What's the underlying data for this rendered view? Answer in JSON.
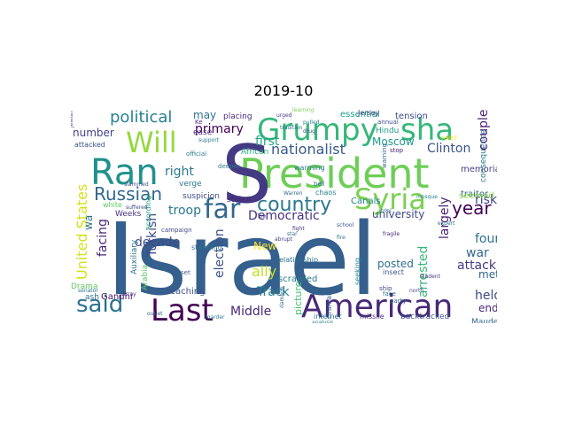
{
  "figure": {
    "title": "2019-10"
  },
  "palette": {
    "dark_purple": "#440154",
    "indigo": "#472d7b",
    "blue": "#3b528b",
    "steel": "#2c728e",
    "teal": "#21918c",
    "green_teal": "#28ae80",
    "green": "#5ec962",
    "light_green": "#addc30",
    "yellow": "#fde725"
  },
  "words": [
    {
      "text": "Israel",
      "color": "#355f8d"
    },
    {
      "text": "President",
      "color": "#6ece58"
    },
    {
      "text": "S",
      "color": "#443983"
    },
    {
      "text": "Grumpy",
      "color": "#35b779"
    },
    {
      "text": "sha",
      "color": "#35b779"
    },
    {
      "text": "American",
      "color": "#482878"
    },
    {
      "text": "Ran",
      "color": "#21918c"
    },
    {
      "text": "Last",
      "color": "#440154"
    },
    {
      "text": "Syria",
      "color": "#7ad151"
    },
    {
      "text": "Will",
      "color": "#95d840"
    },
    {
      "text": "far",
      "color": "#31688e"
    },
    {
      "text": "said",
      "color": "#2c728e"
    },
    {
      "text": "country",
      "color": "#2a788e"
    },
    {
      "text": "Russian",
      "color": "#31688e"
    },
    {
      "text": "political",
      "color": "#26828e"
    },
    {
      "text": "year",
      "color": "#440154"
    },
    {
      "text": "United States",
      "color": "#d2e21b"
    },
    {
      "text": "nationalist",
      "color": "#38598c"
    },
    {
      "text": "Democratic",
      "color": "#46337f"
    },
    {
      "text": "troop",
      "color": "#2a788e"
    },
    {
      "text": "right",
      "color": "#2a788e"
    },
    {
      "text": "primary",
      "color": "#440154"
    },
    {
      "text": "may",
      "color": "#2c728e"
    },
    {
      "text": "number",
      "color": "#424086"
    },
    {
      "text": "decade",
      "color": "#3e4a89"
    },
    {
      "text": "Turkish",
      "color": "#3e4a89"
    },
    {
      "text": "election",
      "color": "#3b528b"
    },
    {
      "text": "facing",
      "color": "#482475"
    },
    {
      "text": "wa",
      "color": "#2c728e"
    },
    {
      "text": "first",
      "color": "#21a685"
    },
    {
      "text": "ally",
      "color": "#bddf26"
    },
    {
      "text": "Track",
      "color": "#26828e"
    },
    {
      "text": "Middle",
      "color": "#482878"
    },
    {
      "text": "Moscow",
      "color": "#1f988b"
    },
    {
      "text": "Clinton",
      "color": "#3b528b"
    },
    {
      "text": "couple",
      "color": "#481f70"
    },
    {
      "text": "risk",
      "color": "#414487"
    },
    {
      "text": "found",
      "color": "#2c728e"
    },
    {
      "text": "war",
      "color": "#31688e"
    },
    {
      "text": "attack",
      "color": "#443983"
    },
    {
      "text": "held",
      "color": "#3e4a89"
    },
    {
      "text": "end",
      "color": "#482878"
    },
    {
      "text": "met",
      "color": "#31688e"
    },
    {
      "text": "largely",
      "color": "#481f70"
    },
    {
      "text": "arrested",
      "color": "#35b779"
    },
    {
      "text": "posted",
      "color": "#2d708e"
    },
    {
      "text": "New",
      "color": "#fde725"
    },
    {
      "text": "picture",
      "color": "#44bf70"
    },
    {
      "text": "university",
      "color": "#3e4a89"
    },
    {
      "text": "Canals",
      "color": "#26828e"
    },
    {
      "text": "scrawled",
      "color": "#287c8e"
    },
    {
      "text": "relationship",
      "color": "#2c728e"
    },
    {
      "text": "seeking",
      "color": "#26828e"
    },
    {
      "text": "traitor",
      "color": "#31688e"
    },
    {
      "text": "seemed",
      "color": "#8fd744"
    },
    {
      "text": "tension",
      "color": "#3e4a89"
    },
    {
      "text": "Hindu",
      "color": "#1fa088"
    },
    {
      "text": "memorial",
      "color": "#433e85"
    },
    {
      "text": "consequence",
      "color": "#2a788e"
    },
    {
      "text": "essential",
      "color": "#1fa088"
    },
    {
      "text": "placing",
      "color": "#472c7a"
    },
    {
      "text": "African",
      "color": "#2ab07f"
    },
    {
      "text": "warming",
      "color": "#2a788e"
    },
    {
      "text": "suspicion",
      "color": "#3e4a89"
    },
    {
      "text": "verge",
      "color": "#2a788e"
    },
    {
      "text": "stolen",
      "color": "#482475"
    },
    {
      "text": "reaching",
      "color": "#3b528b"
    },
    {
      "text": "Gandhi",
      "color": "#471365"
    },
    {
      "text": "Drama",
      "color": "#5ec962"
    },
    {
      "text": "ash",
      "color": "#2c728e"
    },
    {
      "text": "Weeks",
      "color": "#46337f"
    },
    {
      "text": "Auxiliary",
      "color": "#2a788e"
    },
    {
      "text": "Arabia",
      "color": "#5ec962"
    },
    {
      "text": "according",
      "color": "#20a486"
    },
    {
      "text": "campaign",
      "color": "#3e4a89"
    },
    {
      "text": "standing",
      "color": "#2c728e"
    },
    {
      "text": "Maude",
      "color": "#31688e"
    },
    {
      "text": "backtracked",
      "color": "#3b528b"
    },
    {
      "text": "missile",
      "color": "#46337f"
    },
    {
      "text": "Cranial",
      "color": "#33638d"
    },
    {
      "text": "internet",
      "color": "#2c728e"
    },
    {
      "text": "insect",
      "color": "#3b528b"
    },
    {
      "text": "chaos",
      "color": "#26828e"
    },
    {
      "text": "Jersey",
      "color": "#433e85"
    },
    {
      "text": "annual",
      "color": "#3b528b"
    },
    {
      "text": "stop",
      "color": "#482878"
    },
    {
      "text": "ship",
      "color": "#3e4a89"
    },
    {
      "text": "party",
      "color": "#31688e"
    },
    {
      "text": "face",
      "color": "#2c728e"
    },
    {
      "text": "set",
      "color": "#38598c"
    },
    {
      "text": "Toe",
      "color": "#443983"
    },
    {
      "text": "Warren",
      "color": "#31688e"
    },
    {
      "text": "bell",
      "color": "#2c728e"
    },
    {
      "text": "deeper",
      "color": "#287c8e"
    },
    {
      "text": "official",
      "color": "#2a788e"
    },
    {
      "text": "support",
      "color": "#26828e"
    },
    {
      "text": "ease",
      "color": "#482878"
    },
    {
      "text": "white",
      "color": "#5ec962"
    },
    {
      "text": "suffered",
      "color": "#3e4a89"
    },
    {
      "text": "attacked",
      "color": "#3b528b"
    },
    {
      "text": "Jewish",
      "color": "#433e85"
    },
    {
      "text": "senator",
      "color": "#2c728e"
    },
    {
      "text": "array",
      "color": "#46337f"
    },
    {
      "text": "outlet",
      "color": "#31688e"
    },
    {
      "text": "boarder",
      "color": "#2a788e"
    },
    {
      "text": "slammed",
      "color": "#3b528b"
    },
    {
      "text": "learning",
      "color": "#7ad151"
    },
    {
      "text": "urged",
      "color": "#443983"
    },
    {
      "text": "relief",
      "color": "#fde725"
    },
    {
      "text": "expert",
      "color": "#2c728e"
    },
    {
      "text": "fragile",
      "color": "#482878"
    },
    {
      "text": "warning",
      "color": "#31688e"
    },
    {
      "text": "mosque",
      "color": "#26828e"
    },
    {
      "text": "student",
      "color": "#46337f"
    },
    {
      "text": "fire",
      "color": "#2a788e"
    },
    {
      "text": "north",
      "color": "#3e4a89"
    },
    {
      "text": "star",
      "color": "#2c728e"
    },
    {
      "text": "abrupt",
      "color": "#443983"
    },
    {
      "text": "school",
      "color": "#3b528b"
    },
    {
      "text": "damage",
      "color": "#31688e"
    },
    {
      "text": "analysis",
      "color": "#2a788e"
    },
    {
      "text": "pulled",
      "color": "#26828e"
    },
    {
      "text": "fight",
      "color": "#46337f"
    },
    {
      "text": "drug",
      "color": "#3e4a89"
    },
    {
      "text": "tradition",
      "color": "#2c728e"
    },
    {
      "text": "trial",
      "color": "#31688e"
    },
    {
      "text": "Ke",
      "color": "#482878"
    }
  ]
}
